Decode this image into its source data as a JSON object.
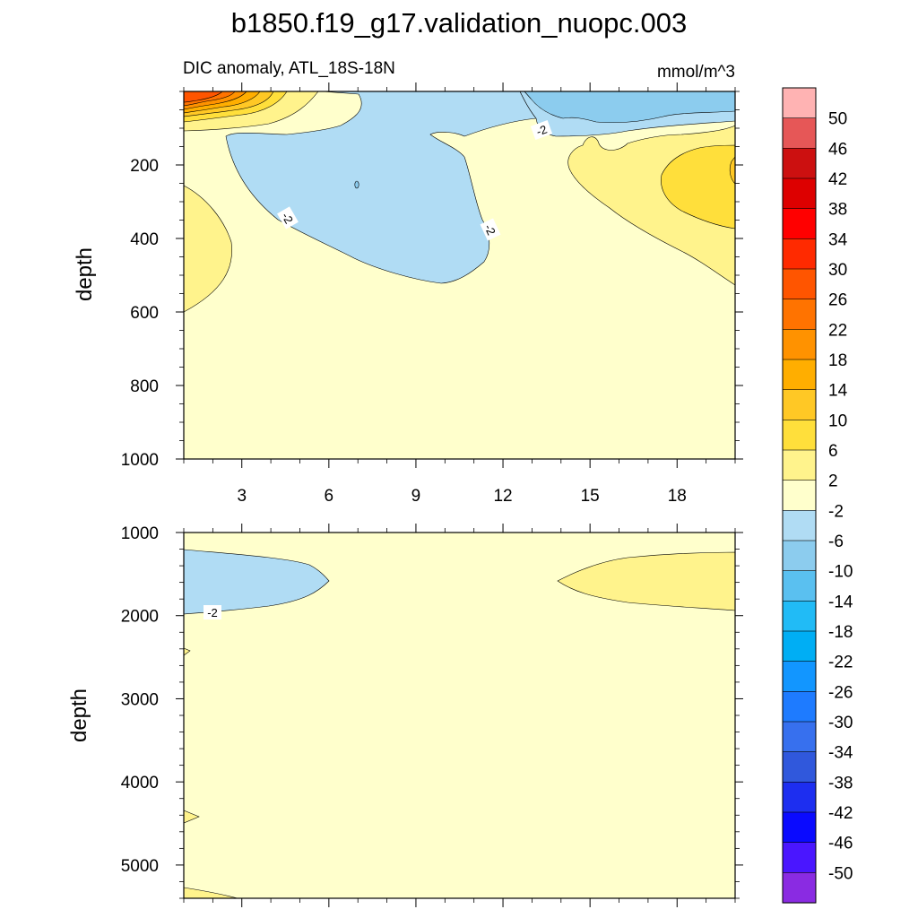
{
  "title": "b1850.f19_g17.validation_nuopc.003",
  "subtitle_left": "DIC anomaly, ATL_18S-18N",
  "subtitle_right": "mmol/m^3",
  "chart_data": [
    {
      "type": "contour",
      "panel": "upper",
      "xlabel": "",
      "ylabel": "depth",
      "xlim": [
        1,
        20
      ],
      "ylim": [
        0,
        1000
      ],
      "y_inverted": true,
      "x_ticks": [
        3,
        6,
        9,
        12,
        15,
        18
      ],
      "y_ticks": [
        200,
        400,
        600,
        800,
        1000
      ],
      "contour_labels": [
        "-2",
        "-2",
        "-2"
      ],
      "regions": [
        {
          "name": "surface-positive-anomaly",
          "max_value": 30,
          "location": "x 1-4, depth 0-100"
        },
        {
          "name": "negative-anomaly-central",
          "range": "-6 to -2",
          "location": "x 2.5-11, depth 100-520"
        },
        {
          "name": "negative-anomaly-surface",
          "range": "-10 to -2",
          "location": "x 7-20, depth 0-130"
        },
        {
          "name": "positive-anomaly-east",
          "range": "2 to 10",
          "location": "x 14-20, depth 100-530"
        },
        {
          "name": "positive-anomaly-west",
          "range": "2 to 6",
          "location": "x 1-2.5, depth 260-600"
        },
        {
          "name": "background",
          "range": "-2 to 2",
          "location": "elsewhere"
        }
      ]
    },
    {
      "type": "contour",
      "panel": "lower",
      "xlabel": "",
      "ylabel": "depth",
      "xlim": [
        1,
        20
      ],
      "ylim": [
        1000,
        5400
      ],
      "y_inverted": true,
      "x_ticks": [
        3,
        6,
        9,
        12,
        15,
        18
      ],
      "y_ticks": [
        1000,
        2000,
        3000,
        4000,
        5000
      ],
      "contour_labels": [
        "-2"
      ],
      "regions": [
        {
          "name": "negative-anomaly-west",
          "range": "-6 to -2",
          "location": "x 1-6, depth 1200-1950"
        },
        {
          "name": "positive-anomaly-east",
          "range": "2 to 6",
          "location": "x 15-20, depth 1250-1950"
        },
        {
          "name": "background",
          "range": "-2 to 2",
          "location": "elsewhere"
        }
      ]
    }
  ],
  "colorbar": {
    "labels": [
      "50",
      "46",
      "42",
      "38",
      "34",
      "30",
      "26",
      "22",
      "18",
      "14",
      "10",
      "6",
      "2",
      "-2",
      "-6",
      "-10",
      "-14",
      "-18",
      "-22",
      "-26",
      "-30",
      "-34",
      "-38",
      "-42",
      "-46",
      "-50"
    ],
    "colors": [
      "#FFB3B3",
      "#E65757",
      "#CC1010",
      "#DD0000",
      "#FF0000",
      "#FF2A00",
      "#FF5500",
      "#FF7300",
      "#FF9200",
      "#FFAE00",
      "#FFC825",
      "#FFDF3B",
      "#FFF38C",
      "#FFFFCC",
      "#B0DCF4",
      "#8CCCEE",
      "#5AC0F0",
      "#21BBF6",
      "#00AEF4",
      "#1296FF",
      "#1E7BFF",
      "#3770EE",
      "#3058DC",
      "#1D2EF0",
      "#0A0AFF",
      "#4A16FF",
      "#8A2BE2"
    ]
  }
}
